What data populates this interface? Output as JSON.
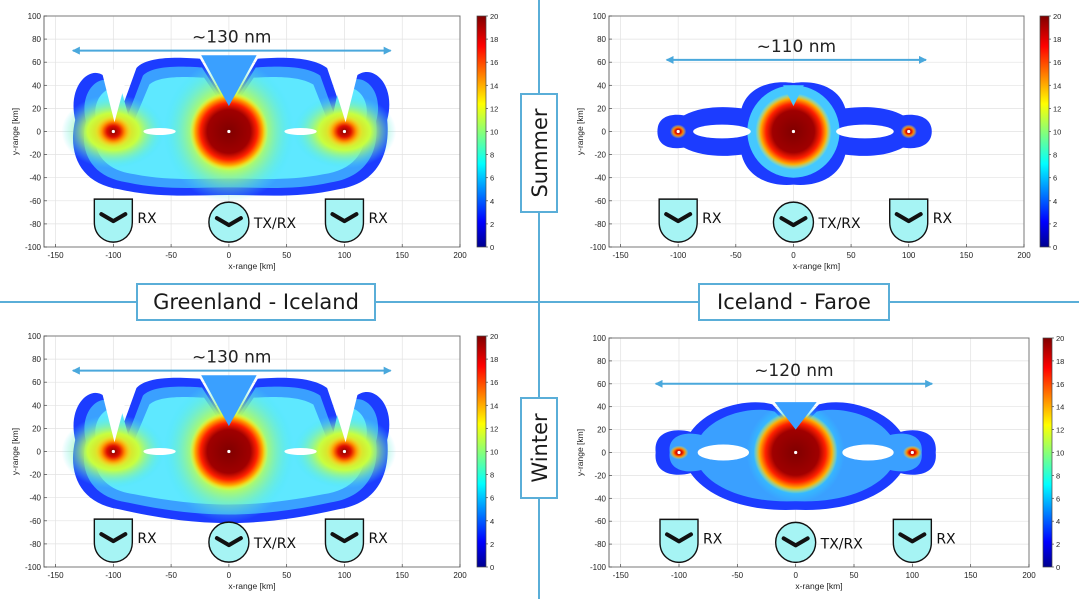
{
  "colors": {
    "divider": "#5aaed8",
    "arrow": "#4aa8dc",
    "label_box": "#5aaed8",
    "icon_fill": "#a6f4f4"
  },
  "colorbar": {
    "ticks": [
      "0",
      "2",
      "4",
      "6",
      "8",
      "10",
      "12",
      "14",
      "16",
      "18",
      "20"
    ],
    "colormap": "jet",
    "range": [
      0,
      20
    ]
  },
  "labels": {
    "left_pair": "Greenland - Iceland",
    "right_pair": "Iceland - Faroe",
    "summer": "Summer",
    "winter": "Winter"
  },
  "icons": {
    "rx": "RX",
    "txrx": "TX/RX",
    "rx_icon": "receiver-buoy-icon",
    "txrx_icon": "transceiver-buoy-icon"
  },
  "chart_data": [
    {
      "id": "tl",
      "type": "heatmap",
      "xlabel": "x-range [km]",
      "ylabel": "y-range [km]",
      "xlim": [
        -160,
        200
      ],
      "ylim": [
        -100,
        100
      ],
      "xticks": [
        "-150",
        "-100",
        "-50",
        "0",
        "50",
        "100",
        "150",
        "200"
      ],
      "yticks": [
        "100",
        "80",
        "60",
        "40",
        "20",
        "0",
        "-20",
        "-40",
        "-60",
        "-80",
        "-100"
      ],
      "annotation": "~130 nm",
      "arrow_x": [
        -135,
        140
      ],
      "arrow_y": 70,
      "rx_positions": [
        -100,
        100
      ],
      "txrx_position": 0,
      "grid": true
    },
    {
      "id": "tr",
      "type": "heatmap",
      "xlabel": "x-range [km]",
      "ylabel": "y-range [km]",
      "xlim": [
        -160,
        200
      ],
      "ylim": [
        -100,
        100
      ],
      "xticks": [
        "-150",
        "-100",
        "-50",
        "0",
        "50",
        "100",
        "150",
        "200"
      ],
      "yticks": [
        "100",
        "80",
        "60",
        "40",
        "20",
        "0",
        "-20",
        "-40",
        "-60",
        "-80",
        "-100"
      ],
      "annotation": "~110 nm",
      "arrow_x": [
        -110,
        115
      ],
      "arrow_y": 62,
      "rx_positions": [
        -100,
        100
      ],
      "txrx_position": 0,
      "grid": true
    },
    {
      "id": "bl",
      "type": "heatmap",
      "xlabel": "x-range [km]",
      "ylabel": "y-range [km]",
      "xlim": [
        -160,
        200
      ],
      "ylim": [
        -100,
        100
      ],
      "xticks": [
        "-150",
        "-100",
        "-50",
        "0",
        "50",
        "100",
        "150",
        "200"
      ],
      "yticks": [
        "100",
        "80",
        "60",
        "40",
        "20",
        "0",
        "-20",
        "-40",
        "-60",
        "-80",
        "-100"
      ],
      "annotation": "~130 nm",
      "arrow_x": [
        -135,
        140
      ],
      "arrow_y": 70,
      "rx_positions": [
        -100,
        100
      ],
      "txrx_position": 0,
      "grid": true
    },
    {
      "id": "br",
      "type": "heatmap",
      "xlabel": "x-range [km]",
      "ylabel": "y-range [km]",
      "xlim": [
        -160,
        200
      ],
      "ylim": [
        -100,
        100
      ],
      "xticks": [
        "-150",
        "-100",
        "-50",
        "0",
        "50",
        "100",
        "150",
        "200"
      ],
      "yticks": [
        "100",
        "80",
        "60",
        "40",
        "20",
        "0",
        "-20",
        "-40",
        "-60",
        "-80",
        "-100"
      ],
      "annotation": "~120 nm",
      "arrow_x": [
        -120,
        117
      ],
      "arrow_y": 60,
      "rx_positions": [
        -100,
        100
      ],
      "txrx_position": 0,
      "grid": true
    }
  ]
}
